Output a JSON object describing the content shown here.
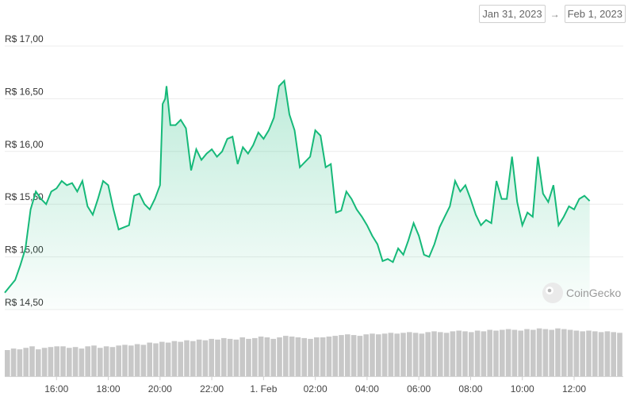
{
  "date_range": {
    "start": "Jan 31, 2023",
    "arrow": "→",
    "end": "Feb 1, 2023"
  },
  "watermark": {
    "text": "CoinGecko",
    "icon": "gecko-logo-icon"
  },
  "colors": {
    "line": "#16b979",
    "fill": "#16b979",
    "grid": "#ececec",
    "volume": "#c8c8c8"
  },
  "chart_data": {
    "type": "area",
    "currency_prefix": "R$",
    "yticks": [
      {
        "value": 14.5,
        "label": "R$ 14,50"
      },
      {
        "value": 15.0,
        "label": "R$ 15,00"
      },
      {
        "value": 15.5,
        "label": "R$ 15,50"
      },
      {
        "value": 16.0,
        "label": "R$ 16,00"
      },
      {
        "value": 16.5,
        "label": "R$ 16,50"
      },
      {
        "value": 17.0,
        "label": "R$ 17,00"
      }
    ],
    "ylim": [
      14.5,
      17.0
    ],
    "xlim": [
      14.0,
      37.9
    ],
    "xticks": [
      {
        "hour": 16,
        "label": "16:00"
      },
      {
        "hour": 18,
        "label": "18:00"
      },
      {
        "hour": 20,
        "label": "20:00"
      },
      {
        "hour": 22,
        "label": "22:00"
      },
      {
        "hour": 24,
        "label": "1. Feb"
      },
      {
        "hour": 26,
        "label": "02:00"
      },
      {
        "hour": 28,
        "label": "04:00"
      },
      {
        "hour": 30,
        "label": "06:00"
      },
      {
        "hour": 32,
        "label": "08:00"
      },
      {
        "hour": 34,
        "label": "10:00"
      },
      {
        "hour": 36,
        "label": "12:00"
      }
    ],
    "price_points": [
      [
        14.0,
        14.66
      ],
      [
        14.2,
        14.72
      ],
      [
        14.4,
        14.78
      ],
      [
        14.6,
        14.92
      ],
      [
        14.8,
        15.08
      ],
      [
        15.0,
        15.45
      ],
      [
        15.2,
        15.62
      ],
      [
        15.4,
        15.55
      ],
      [
        15.6,
        15.5
      ],
      [
        15.8,
        15.62
      ],
      [
        16.0,
        15.65
      ],
      [
        16.2,
        15.72
      ],
      [
        16.4,
        15.68
      ],
      [
        16.6,
        15.7
      ],
      [
        16.8,
        15.62
      ],
      [
        17.0,
        15.72
      ],
      [
        17.2,
        15.48
      ],
      [
        17.4,
        15.4
      ],
      [
        17.6,
        15.55
      ],
      [
        17.8,
        15.72
      ],
      [
        18.0,
        15.68
      ],
      [
        18.2,
        15.45
      ],
      [
        18.4,
        15.26
      ],
      [
        18.6,
        15.28
      ],
      [
        18.8,
        15.3
      ],
      [
        19.0,
        15.58
      ],
      [
        19.2,
        15.6
      ],
      [
        19.4,
        15.5
      ],
      [
        19.6,
        15.45
      ],
      [
        19.8,
        15.55
      ],
      [
        20.0,
        15.68
      ],
      [
        20.1,
        16.45
      ],
      [
        20.2,
        16.5
      ],
      [
        20.25,
        16.62
      ],
      [
        20.4,
        16.25
      ],
      [
        20.6,
        16.25
      ],
      [
        20.8,
        16.3
      ],
      [
        21.0,
        16.22
      ],
      [
        21.2,
        15.82
      ],
      [
        21.4,
        16.02
      ],
      [
        21.6,
        15.92
      ],
      [
        21.8,
        15.98
      ],
      [
        22.0,
        16.02
      ],
      [
        22.2,
        15.95
      ],
      [
        22.4,
        16.0
      ],
      [
        22.6,
        16.12
      ],
      [
        22.8,
        16.14
      ],
      [
        23.0,
        15.88
      ],
      [
        23.2,
        16.04
      ],
      [
        23.4,
        15.98
      ],
      [
        23.6,
        16.06
      ],
      [
        23.8,
        16.18
      ],
      [
        24.0,
        16.12
      ],
      [
        24.2,
        16.2
      ],
      [
        24.4,
        16.32
      ],
      [
        24.6,
        16.62
      ],
      [
        24.8,
        16.67
      ],
      [
        25.0,
        16.35
      ],
      [
        25.2,
        16.2
      ],
      [
        25.4,
        15.85
      ],
      [
        25.6,
        15.9
      ],
      [
        25.8,
        15.95
      ],
      [
        26.0,
        16.2
      ],
      [
        26.2,
        16.15
      ],
      [
        26.4,
        15.85
      ],
      [
        26.6,
        15.88
      ],
      [
        26.8,
        15.42
      ],
      [
        27.0,
        15.44
      ],
      [
        27.2,
        15.62
      ],
      [
        27.4,
        15.55
      ],
      [
        27.6,
        15.45
      ],
      [
        27.8,
        15.38
      ],
      [
        28.0,
        15.3
      ],
      [
        28.2,
        15.2
      ],
      [
        28.4,
        15.12
      ],
      [
        28.6,
        14.96
      ],
      [
        28.8,
        14.98
      ],
      [
        29.0,
        14.95
      ],
      [
        29.2,
        15.08
      ],
      [
        29.4,
        15.02
      ],
      [
        29.6,
        15.16
      ],
      [
        29.8,
        15.32
      ],
      [
        30.0,
        15.2
      ],
      [
        30.2,
        15.02
      ],
      [
        30.4,
        15.0
      ],
      [
        30.6,
        15.12
      ],
      [
        30.8,
        15.28
      ],
      [
        31.0,
        15.38
      ],
      [
        31.2,
        15.48
      ],
      [
        31.4,
        15.72
      ],
      [
        31.6,
        15.62
      ],
      [
        31.8,
        15.68
      ],
      [
        32.0,
        15.55
      ],
      [
        32.2,
        15.4
      ],
      [
        32.4,
        15.3
      ],
      [
        32.6,
        15.35
      ],
      [
        32.8,
        15.32
      ],
      [
        33.0,
        15.72
      ],
      [
        33.2,
        15.55
      ],
      [
        33.4,
        15.55
      ],
      [
        33.6,
        15.95
      ],
      [
        33.8,
        15.52
      ],
      [
        34.0,
        15.3
      ],
      [
        34.2,
        15.42
      ],
      [
        34.4,
        15.38
      ],
      [
        34.6,
        15.95
      ],
      [
        34.8,
        15.6
      ],
      [
        35.0,
        15.52
      ],
      [
        35.2,
        15.68
      ],
      [
        35.4,
        15.3
      ],
      [
        35.6,
        15.38
      ],
      [
        35.8,
        15.48
      ],
      [
        36.0,
        15.45
      ],
      [
        36.2,
        15.55
      ],
      [
        36.4,
        15.58
      ],
      [
        36.6,
        15.53
      ]
    ],
    "volume_series": [
      0.35,
      0.37,
      0.36,
      0.38,
      0.4,
      0.36,
      0.38,
      0.39,
      0.4,
      0.4,
      0.38,
      0.39,
      0.37,
      0.4,
      0.41,
      0.38,
      0.4,
      0.39,
      0.41,
      0.42,
      0.41,
      0.43,
      0.42,
      0.45,
      0.44,
      0.46,
      0.45,
      0.47,
      0.46,
      0.48,
      0.47,
      0.49,
      0.48,
      0.5,
      0.49,
      0.51,
      0.5,
      0.49,
      0.52,
      0.5,
      0.51,
      0.53,
      0.52,
      0.5,
      0.52,
      0.54,
      0.53,
      0.52,
      0.51,
      0.5,
      0.52,
      0.52,
      0.53,
      0.54,
      0.55,
      0.56,
      0.55,
      0.54,
      0.56,
      0.57,
      0.56,
      0.57,
      0.58,
      0.57,
      0.58,
      0.59,
      0.58,
      0.57,
      0.59,
      0.6,
      0.59,
      0.58,
      0.6,
      0.61,
      0.6,
      0.59,
      0.61,
      0.6,
      0.62,
      0.61,
      0.62,
      0.63,
      0.62,
      0.61,
      0.63,
      0.62,
      0.64,
      0.63,
      0.62,
      0.64,
      0.63,
      0.62,
      0.61,
      0.6,
      0.61,
      0.6,
      0.59,
      0.6,
      0.59,
      0.58
    ]
  }
}
